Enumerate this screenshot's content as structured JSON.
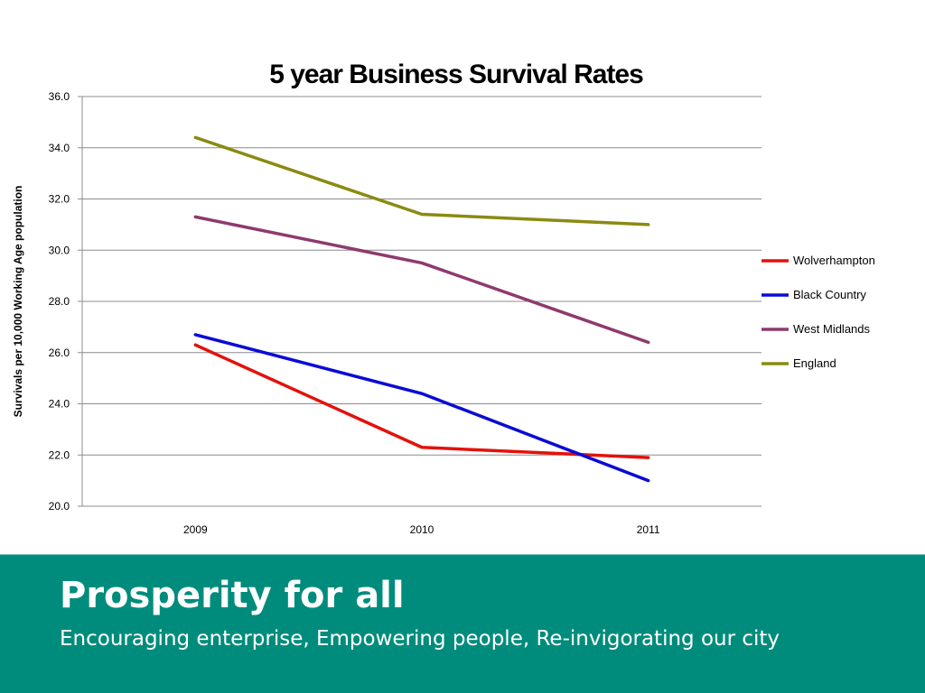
{
  "chart_data": {
    "type": "line",
    "title": "5 year Business Survival Rates",
    "xlabel": "",
    "ylabel": "Survivals per 10,000 Working Age population",
    "x": [
      "2009",
      "2010",
      "2011"
    ],
    "ylim": [
      20.0,
      36.0
    ],
    "yticks": [
      "20.0",
      "22.0",
      "24.0",
      "26.0",
      "28.0",
      "30.0",
      "32.0",
      "34.0",
      "36.0"
    ],
    "grid": true,
    "legend_position": "right",
    "series": [
      {
        "name": "Wolverhampton",
        "values": [
          26.3,
          22.3,
          21.9
        ],
        "color": "#e3120b"
      },
      {
        "name": "Black Country",
        "values": [
          26.7,
          24.4,
          21.0
        ],
        "color": "#0a0ad6"
      },
      {
        "name": "West Midlands",
        "values": [
          31.3,
          29.5,
          26.4
        ],
        "color": "#8e3a6e"
      },
      {
        "name": "England",
        "values": [
          34.4,
          31.4,
          31.0
        ],
        "color": "#8a8a12"
      }
    ]
  },
  "footer": {
    "title": "Prosperity for all",
    "subtitle": "Encouraging enterprise, Empowering people, Re-invigorating our city",
    "background_color": "#008c7c"
  }
}
